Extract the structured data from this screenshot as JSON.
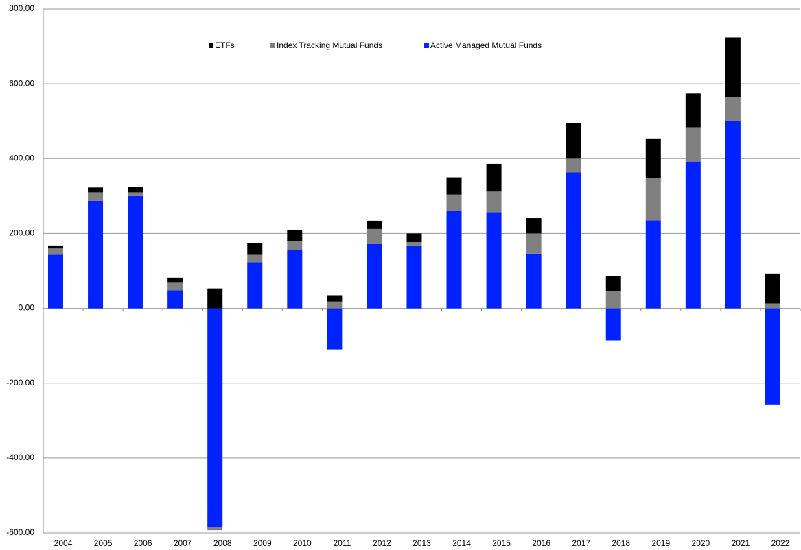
{
  "chart_data": {
    "type": "stacked_bar",
    "categories": [
      "2004",
      "2005",
      "2006",
      "2007",
      "2008",
      "2009",
      "2010",
      "2011",
      "2012",
      "2013",
      "2014",
      "2015",
      "2016",
      "2017",
      "2018",
      "2019",
      "2020",
      "2021",
      "2022"
    ],
    "series": [
      {
        "name": "ETFs",
        "color": "#000000",
        "values": [
          8,
          13,
          15,
          12,
          53,
          32,
          30,
          17,
          22,
          23,
          46,
          74,
          41,
          94,
          41,
          106,
          90,
          160,
          80
        ]
      },
      {
        "name": "Index Tracking Mutual Funds",
        "color": "#808080",
        "values": [
          17,
          23,
          10,
          22,
          -8,
          20,
          24,
          18,
          40,
          9,
          43,
          55,
          54,
          37,
          45,
          113,
          92,
          63,
          13
        ]
      },
      {
        "name": "Active Managed Mutual Funds",
        "color": "#0022ff",
        "values": [
          143,
          287,
          300,
          48,
          -585,
          123,
          156,
          -110,
          172,
          168,
          261,
          257,
          146,
          363,
          -86,
          235,
          392,
          501,
          -257
        ]
      }
    ],
    "ylim": [
      -600,
      800
    ],
    "yticks": [
      {
        "value": -600,
        "label": "-600.00"
      },
      {
        "value": -400,
        "label": "-400.00"
      },
      {
        "value": -200,
        "label": "-200.00"
      },
      {
        "value": 0,
        "label": "0.00"
      },
      {
        "value": 200,
        "label": "200.00"
      },
      {
        "value": 400,
        "label": "400.00"
      },
      {
        "value": 600,
        "label": "600.00"
      },
      {
        "value": 800,
        "label": "800.00"
      }
    ],
    "grid": true,
    "legend": "top"
  }
}
